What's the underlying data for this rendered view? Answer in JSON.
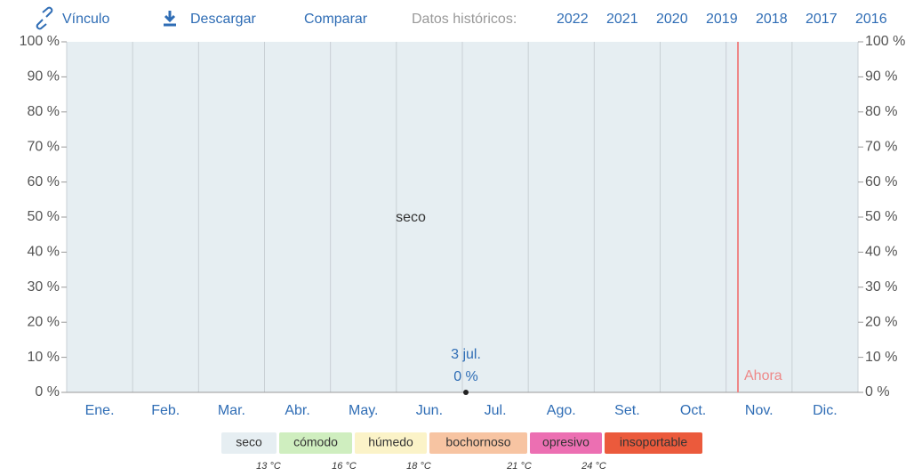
{
  "toolbar": {
    "link": "Vínculo",
    "download": "Descargar",
    "compare": "Comparar",
    "history_label": "Datos históricos:",
    "years": [
      2022,
      2021,
      2020,
      2019,
      2018,
      2017,
      2016
    ]
  },
  "chart_data": {
    "type": "area",
    "categories": [
      "Ene.",
      "Feb.",
      "Mar.",
      "Abr.",
      "May.",
      "Jun.",
      "Jul.",
      "Ago.",
      "Set.",
      "Oct.",
      "Nov.",
      "Dic."
    ],
    "series": [
      {
        "name": "seco",
        "color": "#e6eef2",
        "values": [
          100,
          100,
          100,
          100,
          100,
          100,
          100,
          100,
          100,
          100,
          100,
          100
        ]
      },
      {
        "name": "cómodo",
        "color": "#cfeebf",
        "values": [
          0,
          0,
          0,
          0,
          0,
          0,
          0,
          0,
          0,
          0,
          0,
          0
        ]
      },
      {
        "name": "húmedo",
        "color": "#fbf3c8",
        "values": [
          0,
          0,
          0,
          0,
          0,
          0,
          0,
          0,
          0,
          0,
          0,
          0
        ]
      },
      {
        "name": "bochornoso",
        "color": "#f7c4a2",
        "values": [
          0,
          0,
          0,
          0,
          0,
          0,
          0,
          0,
          0,
          0,
          0,
          0
        ]
      },
      {
        "name": "opresivo",
        "color": "#ec6fb2",
        "values": [
          0,
          0,
          0,
          0,
          0,
          0,
          0,
          0,
          0,
          0,
          0,
          0
        ]
      },
      {
        "name": "insoportable",
        "color": "#eb5a3c",
        "values": [
          0,
          0,
          0,
          0,
          0,
          0,
          0,
          0,
          0,
          0,
          0,
          0
        ]
      }
    ],
    "thresholds": [
      "13 °C",
      "16 °C",
      "18 °C",
      "21 °C",
      "24 °C"
    ],
    "ylim": [
      0,
      100
    ],
    "yticks": [
      {
        "value": 0,
        "label": "0 %"
      },
      {
        "value": 10,
        "label": "10 %"
      },
      {
        "value": 20,
        "label": "20 %"
      },
      {
        "value": 30,
        "label": "30 %"
      },
      {
        "value": 40,
        "label": "40 %"
      },
      {
        "value": 50,
        "label": "50 %"
      },
      {
        "value": 60,
        "label": "60 %"
      },
      {
        "value": 70,
        "label": "70 %"
      },
      {
        "value": 80,
        "label": "80 %"
      },
      {
        "value": 90,
        "label": "90 %"
      },
      {
        "value": 100,
        "label": "100 %"
      }
    ],
    "annotation": {
      "date": "3 jul.",
      "value": 0,
      "value_label": "0 %"
    },
    "now_label": "Ahora"
  }
}
